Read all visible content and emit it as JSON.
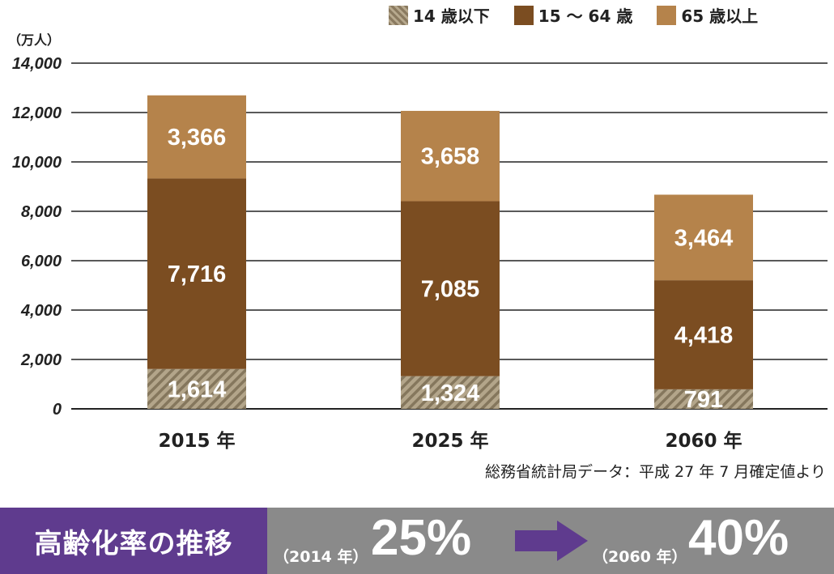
{
  "chart_data": {
    "type": "bar",
    "stacked": true,
    "categories": [
      "2015 年",
      "2025 年",
      "2060 年"
    ],
    "series": [
      {
        "name": "14 歳以下",
        "values": [
          1614,
          1324,
          791
        ],
        "labels": [
          "1,614",
          "1,324",
          "791"
        ],
        "color": "#8a7a60",
        "pattern": "hatch"
      },
      {
        "name": "15 〜 64 歳",
        "values": [
          7716,
          7085,
          4418
        ],
        "labels": [
          "7,716",
          "7,085",
          "4,418"
        ],
        "color": "#7b4d21"
      },
      {
        "name": "65 歳以上",
        "values": [
          3366,
          3658,
          3464
        ],
        "labels": [
          "3,366",
          "3,658",
          "3,464"
        ],
        "color": "#b5834b"
      }
    ],
    "ylabel": "（万人）",
    "ylim": [
      0,
      14000
    ],
    "yticks": [
      0,
      2000,
      4000,
      6000,
      8000,
      10000,
      12000,
      14000
    ],
    "ytick_labels": [
      "0",
      "2,000",
      "4,000",
      "6,000",
      "8,000",
      "10,000",
      "12,000",
      "14,000"
    ],
    "grid": true,
    "legend_position": "top-right"
  },
  "source_note": "総務省統計局データ：平成 27 年 7 月確定値より",
  "banner": {
    "label": "高齢化率の推移",
    "from_year": "（2014 年）",
    "from_value": "25%",
    "to_year": "（2060 年）",
    "to_value": "40%",
    "arrow_icon": "right-arrow-icon",
    "label_color": "#5f3b8e",
    "arrow_color": "#5f3b8e"
  }
}
